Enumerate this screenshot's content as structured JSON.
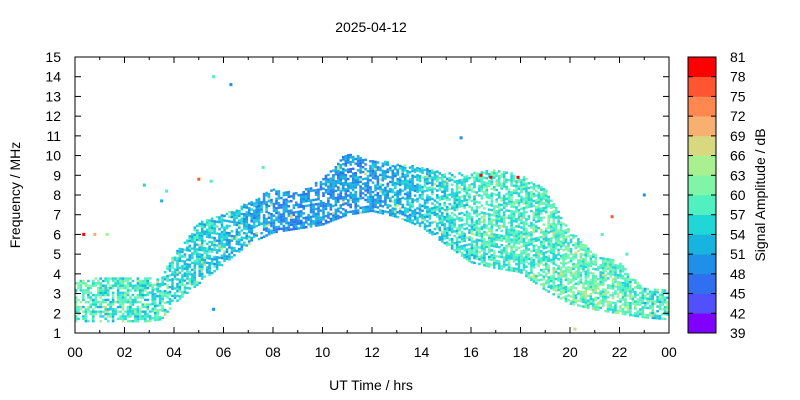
{
  "chart_data": {
    "type": "heatmap",
    "title": "2025-04-12",
    "xlabel": "UT Time / hrs",
    "ylabel": "Frequency / MHz",
    "xlim": [
      0,
      24
    ],
    "ylim": [
      1,
      15
    ],
    "x_ticks": [
      "00",
      "02",
      "04",
      "06",
      "08",
      "10",
      "12",
      "14",
      "16",
      "18",
      "20",
      "22",
      "00"
    ],
    "y_ticks": [
      "1",
      "2",
      "3",
      "4",
      "5",
      "6",
      "7",
      "8",
      "9",
      "10",
      "11",
      "12",
      "13",
      "14",
      "15"
    ],
    "colorbar": {
      "label": "Signal Amplitude / dB",
      "min": 39,
      "max": 81,
      "ticks": [
        "81",
        "78",
        "75",
        "72",
        "69",
        "66",
        "63",
        "60",
        "57",
        "54",
        "51",
        "48",
        "45",
        "42",
        "39"
      ],
      "colors": [
        "#8000ff",
        "#5050ff",
        "#2f6ff0",
        "#1f8fe8",
        "#18b4e0",
        "#20d6d6",
        "#50f0c0",
        "#80f5a8",
        "#a8f090",
        "#d8d880",
        "#f8b070",
        "#ff8850",
        "#ff5530",
        "#ff0000"
      ]
    },
    "envelope": {
      "hours": [
        0,
        1,
        2,
        3,
        3.5,
        4,
        5,
        6,
        7,
        8,
        9,
        10,
        11,
        12,
        13,
        14,
        15,
        16,
        17,
        18,
        19,
        20,
        21,
        22,
        23,
        24
      ],
      "low_mhz": [
        1.6,
        1.6,
        1.6,
        1.6,
        1.7,
        2.5,
        3.5,
        4.5,
        5.5,
        6.1,
        6.3,
        6.5,
        7.0,
        7.2,
        6.9,
        6.4,
        5.5,
        4.6,
        4.3,
        4.1,
        3.2,
        2.5,
        2.2,
        2.0,
        1.8,
        1.7
      ],
      "high_mhz": [
        3.6,
        3.8,
        3.8,
        3.8,
        3.8,
        5.0,
        6.6,
        7.0,
        7.6,
        8.3,
        8.1,
        8.8,
        10.2,
        9.8,
        9.6,
        9.4,
        9.1,
        9.1,
        9.3,
        9.0,
        8.3,
        6.2,
        5.0,
        4.6,
        3.3,
        3.2
      ],
      "amplitude_db": [
        57,
        57,
        57,
        56,
        55,
        55,
        55,
        54,
        52,
        50,
        50,
        50,
        50,
        51,
        52,
        54,
        56,
        57,
        58,
        58,
        58,
        59,
        59,
        58,
        57,
        57
      ]
    },
    "outliers": [
      {
        "hour": 0.35,
        "mhz": 6.0,
        "db": 81
      },
      {
        "hour": 0.8,
        "mhz": 6.0,
        "db": 70
      },
      {
        "hour": 1.3,
        "mhz": 6.0,
        "db": 63
      },
      {
        "hour": 2.8,
        "mhz": 8.5,
        "db": 55
      },
      {
        "hour": 3.7,
        "mhz": 8.2,
        "db": 57
      },
      {
        "hour": 3.5,
        "mhz": 7.7,
        "db": 52
      },
      {
        "hour": 5.6,
        "mhz": 14.0,
        "db": 57
      },
      {
        "hour": 6.3,
        "mhz": 13.6,
        "db": 48
      },
      {
        "hour": 5.0,
        "mhz": 8.8,
        "db": 75
      },
      {
        "hour": 5.5,
        "mhz": 8.7,
        "db": 57
      },
      {
        "hour": 5.6,
        "mhz": 2.2,
        "db": 48
      },
      {
        "hour": 7.6,
        "mhz": 9.4,
        "db": 57
      },
      {
        "hour": 15.6,
        "mhz": 10.9,
        "db": 48
      },
      {
        "hour": 16.4,
        "mhz": 9.0,
        "db": 81
      },
      {
        "hour": 16.8,
        "mhz": 8.9,
        "db": 81
      },
      {
        "hour": 17.9,
        "mhz": 8.9,
        "db": 81
      },
      {
        "hour": 21.3,
        "mhz": 6.0,
        "db": 57
      },
      {
        "hour": 21.7,
        "mhz": 6.9,
        "db": 75
      },
      {
        "hour": 22.3,
        "mhz": 5.0,
        "db": 57
      },
      {
        "hour": 23.0,
        "mhz": 8.0,
        "db": 48
      },
      {
        "hour": 20.2,
        "mhz": 1.2,
        "db": 66
      }
    ]
  }
}
